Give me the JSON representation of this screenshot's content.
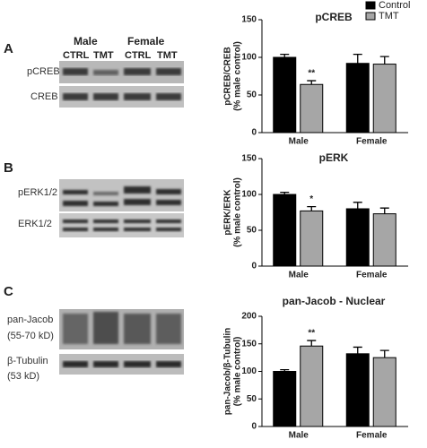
{
  "panels": [
    "A",
    "B",
    "C"
  ],
  "blots": {
    "sexes": [
      "Male",
      "Female"
    ],
    "lanes": [
      "CTRL",
      "TMT",
      "CTRL",
      "TMT"
    ],
    "A": [
      "pCREB",
      "CREB"
    ],
    "B": [
      "pERK1/2",
      "ERK1/2"
    ],
    "C": [
      "pan-Jacob",
      "(55-70 kD)",
      "β-Tubulin",
      "(53 kD)"
    ]
  },
  "chart_data": [
    {
      "type": "bar",
      "title": "pCREB",
      "y_label": [
        "pCREB/CREB",
        "(% male control)"
      ],
      "categories": [
        "Male",
        "Female"
      ],
      "series": [
        {
          "name": "Control",
          "color": "#000000",
          "values": [
            100,
            92
          ],
          "errors": [
            4,
            12
          ]
        },
        {
          "name": "TMT",
          "color": "#a6a6a6",
          "values": [
            64,
            91
          ],
          "errors": [
            5,
            10
          ],
          "significance": [
            "**",
            null
          ]
        }
      ],
      "ylim": [
        0,
        150
      ],
      "yticks": [
        0,
        50,
        100,
        150
      ]
    },
    {
      "type": "bar",
      "title": "pERK",
      "y_label": [
        "pERK/ERK",
        "(% male control)"
      ],
      "categories": [
        "Male",
        "Female"
      ],
      "series": [
        {
          "color": "#000000",
          "values": [
            100,
            80
          ],
          "errors": [
            3,
            9
          ]
        },
        {
          "color": "#a6a6a6",
          "values": [
            77,
            73
          ],
          "errors": [
            6,
            8
          ],
          "significance": [
            "*",
            null
          ]
        }
      ],
      "ylim": [
        0,
        150
      ],
      "yticks": [
        0,
        50,
        100,
        150
      ]
    },
    {
      "type": "bar",
      "title": "pan-Jacob - Nuclear",
      "y_label": [
        "pan-Jacob/β-Tubulin",
        "(% male control)"
      ],
      "categories": [
        "Male",
        "Female"
      ],
      "series": [
        {
          "color": "#000000",
          "values": [
            100,
            132
          ],
          "errors": [
            3,
            12
          ]
        },
        {
          "color": "#a6a6a6",
          "values": [
            146,
            125
          ],
          "errors": [
            10,
            13
          ],
          "significance": [
            "**",
            null
          ]
        }
      ],
      "ylim": [
        0,
        200
      ],
      "yticks": [
        0,
        50,
        100,
        150,
        200
      ]
    }
  ]
}
